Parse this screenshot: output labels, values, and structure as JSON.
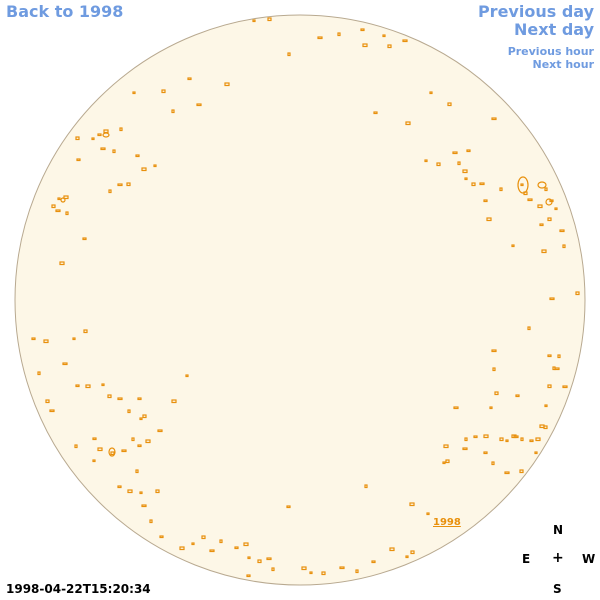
{
  "nav": {
    "back": "Back to 1998",
    "previous_day": "Previous day",
    "next_day": "Next day",
    "previous_hour": "Previous hour",
    "next_hour": "Next hour"
  },
  "timestamp": "1998-04-22T15:20:34",
  "year_link": "1998",
  "compass": {
    "north": "N",
    "south": "S",
    "east": "E",
    "west": "W",
    "center": "+"
  },
  "colors": {
    "disk_fill": "#fdf7e7",
    "disk_edge": "#b8a990",
    "contour": "#e8900c",
    "link": "#6f9be0"
  }
}
